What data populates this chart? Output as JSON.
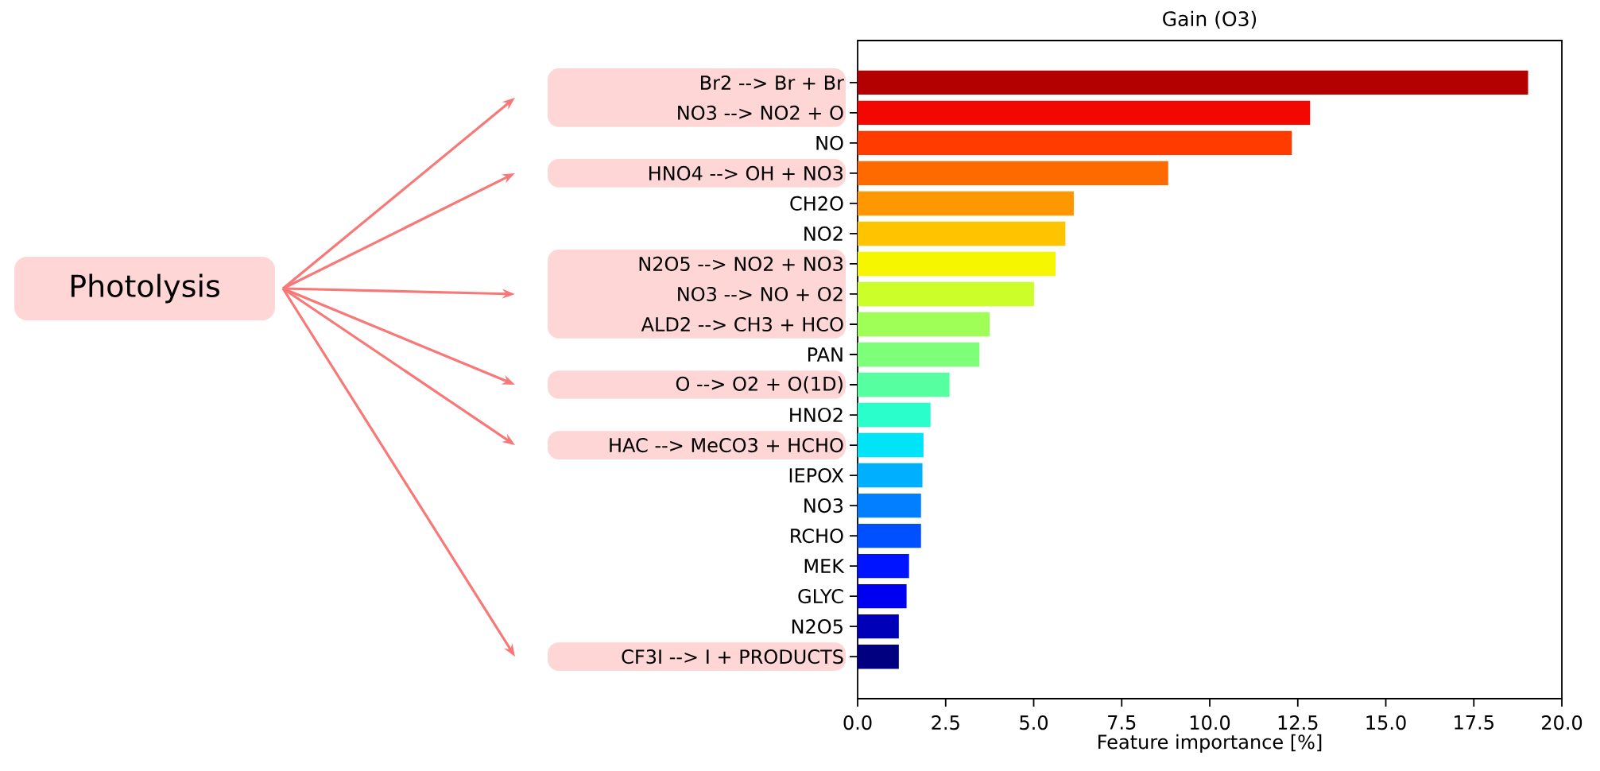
{
  "chart_data": {
    "type": "bar",
    "orientation": "horizontal",
    "title": "Gain (O3)",
    "xlabel": "Feature importance [%]",
    "categories": [
      "Br2 --> Br + Br",
      "NO3 --> NO2 + O",
      "NO",
      "HNO4 --> OH + NO3",
      "CH2O",
      "NO2",
      "N2O5 --> NO2 + NO3",
      "NO3 --> NO + O2",
      "ALD2 --> CH3 + HCO",
      "PAN",
      "O --> O2 + O(1D)",
      "HNO2",
      "HAC --> MeCO3 + HCHO",
      "IEPOX",
      "NO3",
      "RCHO",
      "MEK",
      "GLYC",
      "N2O5",
      "CF3I --> I + PRODUCTS"
    ],
    "values": [
      19.04,
      12.85,
      12.33,
      8.82,
      6.14,
      5.9,
      5.62,
      5.01,
      3.75,
      3.46,
      2.61,
      2.07,
      1.87,
      1.84,
      1.8,
      1.8,
      1.46,
      1.39,
      1.17,
      1.17
    ],
    "colors": [
      "#b30000",
      "#f20800",
      "#ff3b00",
      "#ff6a00",
      "#ff9700",
      "#ffc400",
      "#f6f600",
      "#ccff2a",
      "#a0ff56",
      "#7dff7a",
      "#56ffa0",
      "#2affcc",
      "#00e4f8",
      "#00b0ff",
      "#0080ff",
      "#0050ff",
      "#0014ff",
      "#0000f1",
      "#0000b8",
      "#000080"
    ],
    "xlim": [
      0,
      20
    ],
    "xticks": [
      {
        "value": 0,
        "label": "0.0"
      },
      {
        "value": 2.5,
        "label": "2.5"
      },
      {
        "value": 5,
        "label": "5.0"
      },
      {
        "value": 7.5,
        "label": "7.5"
      },
      {
        "value": 10,
        "label": "10.0"
      },
      {
        "value": 12.5,
        "label": "12.5"
      },
      {
        "value": 15,
        "label": "15.0"
      },
      {
        "value": 17.5,
        "label": "17.5"
      },
      {
        "value": 20,
        "label": "20.0"
      }
    ],
    "annotations": [
      "Photolysis"
    ]
  }
}
